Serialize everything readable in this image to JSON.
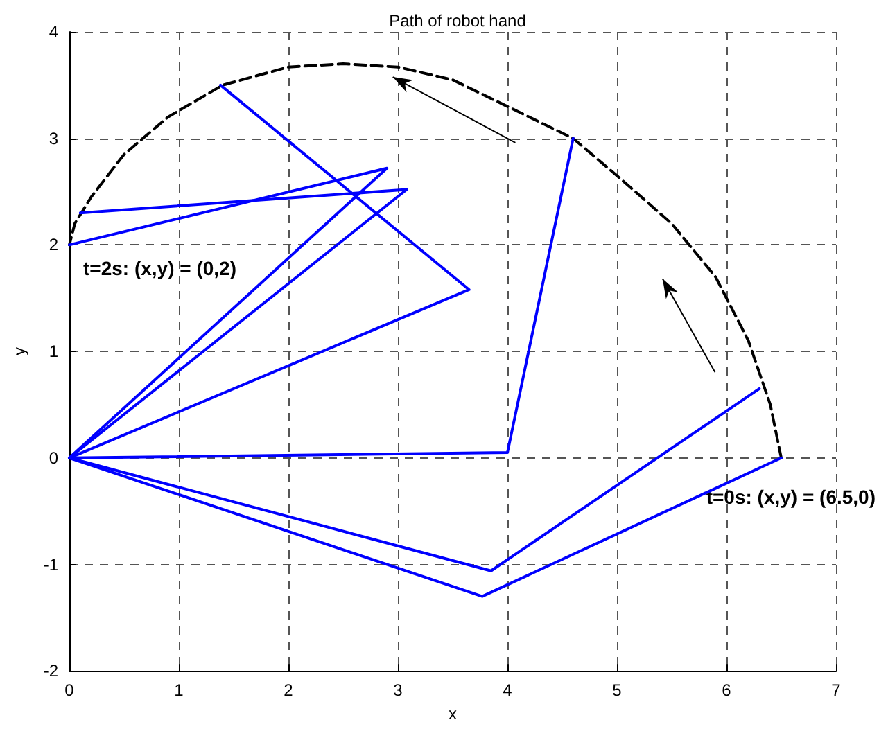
{
  "chart_data": {
    "type": "line",
    "title": "Path of robot hand",
    "xlabel": "x",
    "ylabel": "y",
    "xlim": [
      0,
      7
    ],
    "xticks": [
      0,
      1,
      2,
      3,
      4,
      5,
      6,
      7
    ],
    "ylim": [
      -2,
      4
    ],
    "yticks": [
      -2,
      -1,
      0,
      1,
      2,
      3,
      4
    ],
    "grid": true,
    "marker": "none",
    "annotations": [
      {
        "text": "t=2s: (x,y) = (0,2)",
        "x": 0,
        "y": 2
      },
      {
        "text": "t=0s: (x,y) = (6.5,0)",
        "x": 6.5,
        "y": 0
      }
    ],
    "series": [
      {
        "color": "#000000",
        "line_style": "dashed",
        "x": [
          6.5,
          6.4,
          6.2,
          5.9,
          5.5,
          5.0,
          4.6,
          4.0,
          3.5,
          3.0,
          2.5,
          2.0,
          1.4,
          0.9,
          0.5,
          0.2,
          0.05,
          0
        ],
        "values": [
          0,
          0.5,
          1.1,
          1.7,
          2.2,
          2.65,
          3.0,
          3.3,
          3.55,
          3.67,
          3.7,
          3.67,
          3.5,
          3.2,
          2.85,
          2.45,
          2.2,
          2
        ]
      },
      {
        "color": "#0000ff",
        "line_style": "solid",
        "x": [
          0,
          3.77,
          6.5
        ],
        "values": [
          0,
          -1.3,
          0
        ]
      },
      {
        "color": "#0000ff",
        "line_style": "solid",
        "x": [
          0,
          3.85,
          6.3
        ],
        "values": [
          0,
          -1.06,
          0.65
        ]
      },
      {
        "color": "#0000ff",
        "line_style": "solid",
        "x": [
          0,
          4.0,
          4.6
        ],
        "values": [
          0,
          0.05,
          3.0
        ]
      },
      {
        "color": "#0000ff",
        "line_style": "solid",
        "x": [
          0,
          3.65,
          1.38
        ],
        "values": [
          0,
          1.58,
          3.5
        ]
      },
      {
        "color": "#0000ff",
        "line_style": "solid",
        "x": [
          0,
          3.08,
          0.1
        ],
        "values": [
          0,
          2.52,
          2.3
        ]
      },
      {
        "color": "#0000ff",
        "line_style": "solid",
        "x": [
          0,
          2.9,
          0
        ],
        "values": [
          0,
          2.72,
          2
        ]
      }
    ]
  }
}
